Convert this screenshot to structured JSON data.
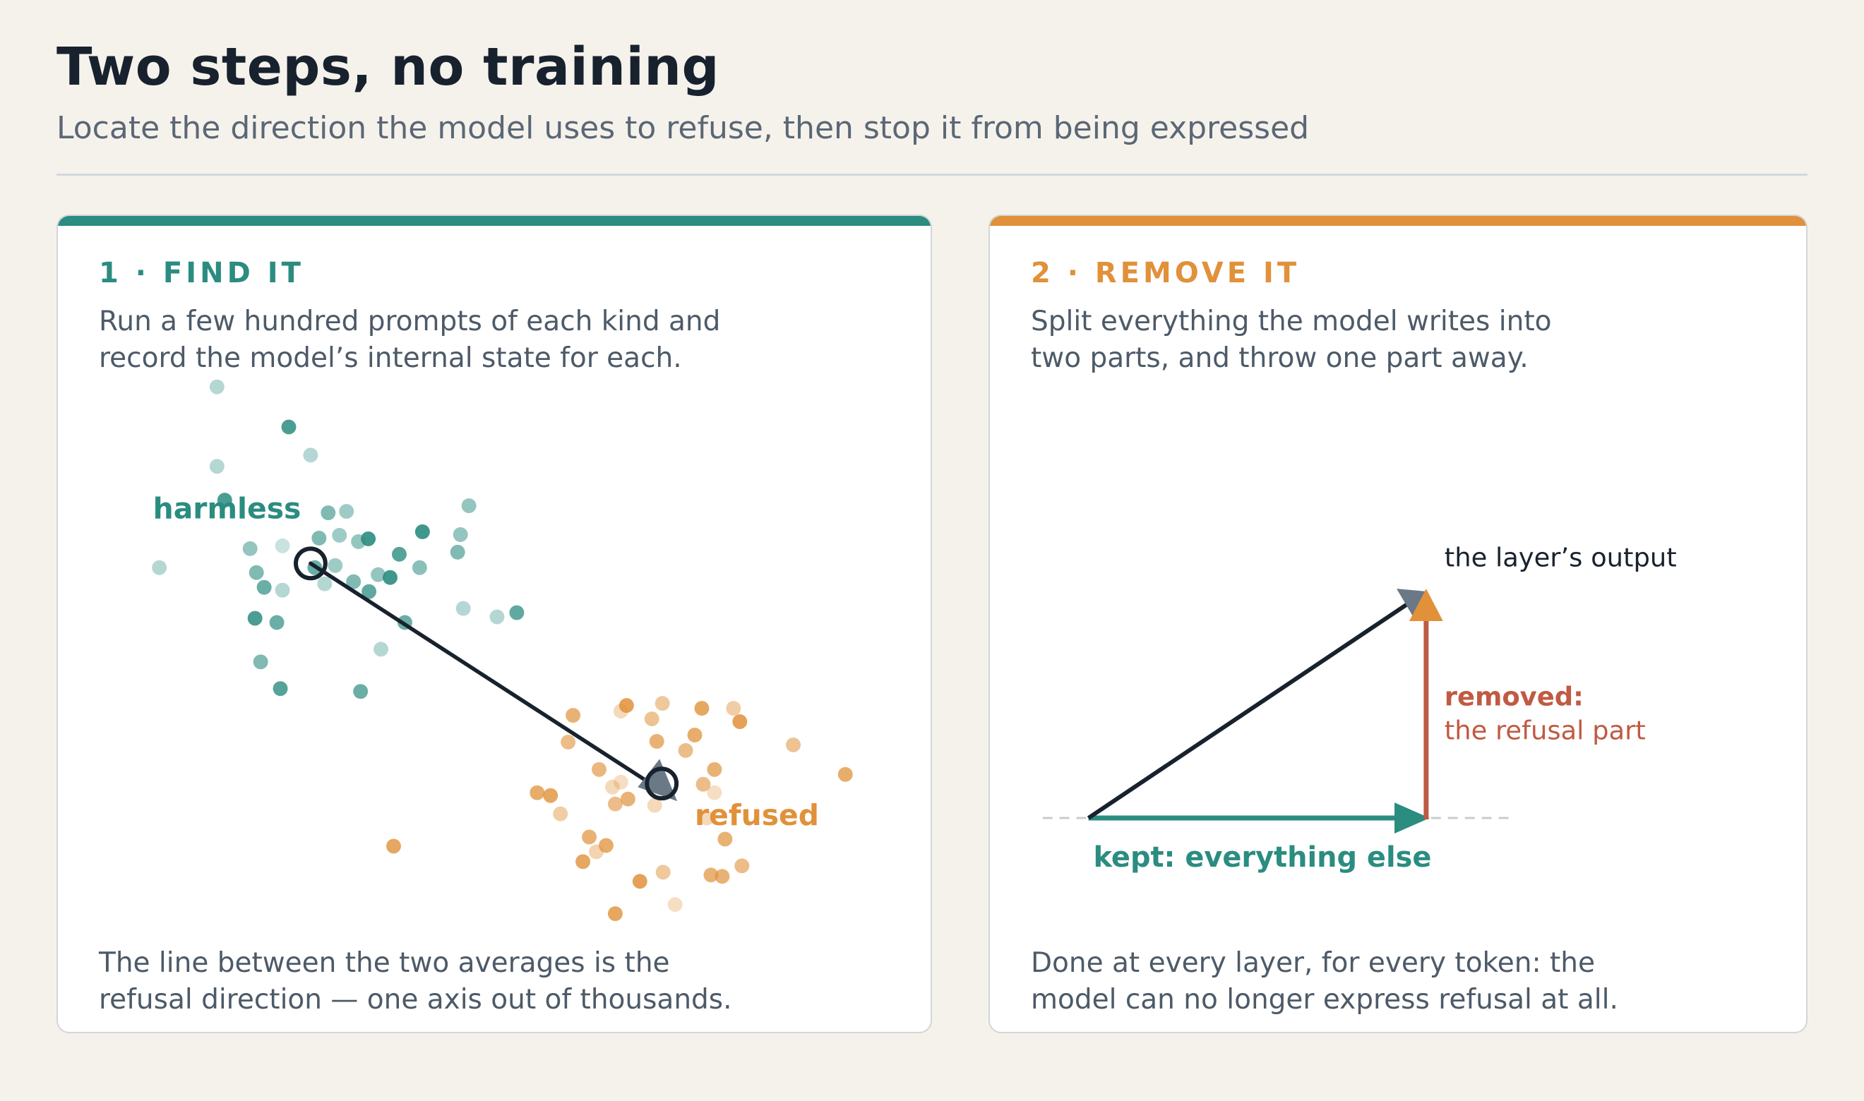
{
  "header": {
    "title": "Two steps, no training",
    "subtitle": "Locate the direction the model uses to refuse, then stop it from being expressed"
  },
  "colors": {
    "teal": "#2b8c80",
    "orange": "#e0913a",
    "dark": "#18222e",
    "slate": "#6b7886",
    "rust": "#c05a42",
    "card_border": "#d2d6da",
    "background": "#f5f2ec"
  },
  "step1": {
    "heading": "1 · FIND IT",
    "intro_lines": [
      "Run a few hundred prompts of each kind and",
      "record the model’s internal state for each."
    ],
    "cluster_labels": {
      "harmless": "harmless",
      "refused": "refused"
    },
    "caption_lines": [
      "The line between the two averages is the",
      "refusal direction — one axis out of thousands."
    ]
  },
  "step2": {
    "heading": "2 · REMOVE IT",
    "intro_lines": [
      "Split everything the model writes into",
      "two parts, and throw one part away."
    ],
    "output_label": "the layer’s output",
    "removed_label_bold": "removed:",
    "removed_label_rest": "the refusal part",
    "kept_label": "kept: everything else",
    "caption_lines": [
      "Done at every layer, for every token: the",
      "model can no longer express refusal at all."
    ]
  }
}
